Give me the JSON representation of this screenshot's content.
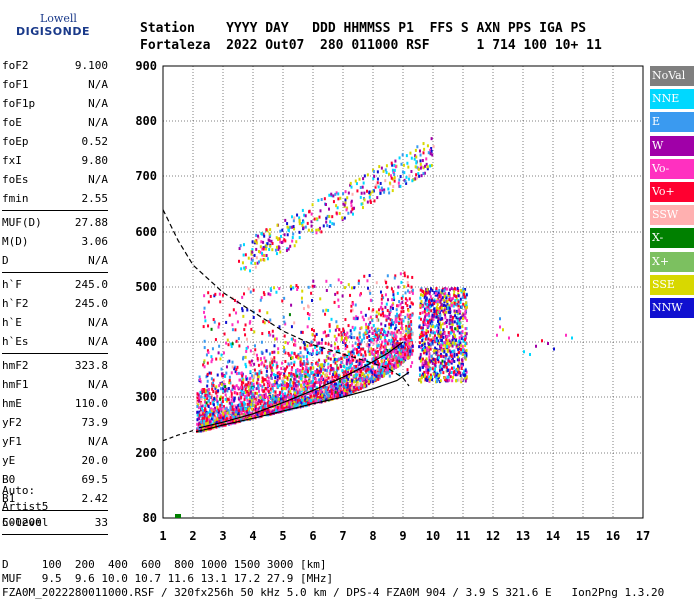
{
  "logo": {
    "line1": "Lowell",
    "line2": "DIGISONDE"
  },
  "header": {
    "row1": "Station    YYYY DAY   DDD HHMMSS P1  FFS S AXN PPS IGA PS",
    "row2": "Fortaleza  2022 Out07  280 011000 RSF      1 714 100 10+ 11"
  },
  "params": [
    {
      "k": "foF2",
      "v": "9.100"
    },
    {
      "k": "foF1",
      "v": "N/A"
    },
    {
      "k": "foF1p",
      "v": "N/A"
    },
    {
      "k": "foE",
      "v": "N/A"
    },
    {
      "k": "foEp",
      "v": "0.52"
    },
    {
      "k": "fxI",
      "v": "9.80"
    },
    {
      "k": "foEs",
      "v": "N/A"
    },
    {
      "k": "fmin",
      "v": "2.55"
    },
    {
      "sep": true
    },
    {
      "k": "MUF(D)",
      "v": "27.88"
    },
    {
      "k": "M(D)",
      "v": "3.06"
    },
    {
      "k": "D",
      "v": "N/A"
    },
    {
      "sep": true
    },
    {
      "k": "h`F",
      "v": "245.0"
    },
    {
      "k": "h`F2",
      "v": "245.0"
    },
    {
      "k": "h`E",
      "v": "N/A"
    },
    {
      "k": "h`Es",
      "v": "N/A"
    },
    {
      "sep": true
    },
    {
      "k": "hmF2",
      "v": "323.8"
    },
    {
      "k": "hmF1",
      "v": "N/A"
    },
    {
      "k": "hmE",
      "v": "110.0"
    },
    {
      "k": "yF2",
      "v": "73.9"
    },
    {
      "k": "yF1",
      "v": "N/A"
    },
    {
      "k": "yE",
      "v": "20.0"
    },
    {
      "k": "B0",
      "v": "69.5"
    },
    {
      "k": "B1",
      "v": "2.42"
    },
    {
      "sep": true
    },
    {
      "k": "C-level",
      "v": "33"
    },
    {
      "sep": true
    }
  ],
  "auto": {
    "l1": "Auto:",
    "l2": "Artist5",
    "l3": "500200"
  },
  "legend": [
    {
      "label": "NoVal",
      "color": "#7f7f7f"
    },
    {
      "label": "NNE",
      "color": "#00d8ff"
    },
    {
      "label": "E",
      "color": "#3a9af0"
    },
    {
      "label": "W",
      "color": "#a000a8"
    },
    {
      "label": "Vo-",
      "color": "#ff30c0"
    },
    {
      "label": "Vo+",
      "color": "#ff0030"
    },
    {
      "label": "SSW",
      "color": "#ffb0b0"
    },
    {
      "label": "X-",
      "color": "#008000"
    },
    {
      "label": "X+",
      "color": "#7cc060"
    },
    {
      "label": "SSE",
      "color": "#d8d800"
    },
    {
      "label": "NNW",
      "color": "#1010d0"
    }
  ],
  "footer": {
    "d_row": "D     100  200  400  600  800 1000 1500 3000 [km]",
    "muf_row": "MUF   9.5  9.6 10.0 10.7 11.6 13.1 17.2 27.9 [MHz]",
    "info_row": "FZA0M_2022280011000.RSF / 320fx256h 50 kHz 5.0 km / DPS-4 FZA0M 904 / 3.9 S 321.6 E   Ion2Png 1.3.20"
  },
  "chart_data": {
    "type": "scatter",
    "xlim": [
      1,
      17
    ],
    "ylim": [
      80,
      900
    ],
    "xticks": [
      1,
      2,
      3,
      4,
      5,
      6,
      7,
      8,
      9,
      10,
      11,
      12,
      13,
      14,
      15,
      16,
      17
    ],
    "yticks": [
      80,
      200,
      300,
      400,
      500,
      600,
      700,
      800,
      900
    ],
    "grid": true,
    "legend_placement": "right",
    "trace_lower": [
      [
        2.1,
        238
      ],
      [
        2.5,
        243
      ],
      [
        3,
        250
      ],
      [
        4,
        262
      ],
      [
        5,
        275
      ],
      [
        6,
        288
      ],
      [
        7,
        300
      ],
      [
        8,
        315
      ],
      [
        8.8,
        330
      ],
      [
        9.2,
        345
      ]
    ],
    "trace_upper": [
      [
        2.2,
        245
      ],
      [
        3,
        255
      ],
      [
        4,
        270
      ],
      [
        5,
        290
      ],
      [
        6,
        312
      ],
      [
        7,
        336
      ],
      [
        7.8,
        358
      ],
      [
        8.5,
        380
      ],
      [
        9.0,
        400
      ]
    ],
    "profile": [
      [
        1.0,
        640
      ],
      [
        1.5,
        585
      ],
      [
        2.0,
        540
      ],
      [
        3,
        490
      ],
      [
        4,
        455
      ],
      [
        5,
        420
      ],
      [
        6,
        395
      ],
      [
        7,
        378
      ],
      [
        7.8,
        365
      ],
      [
        8.5,
        352
      ],
      [
        9.0,
        335
      ],
      [
        9.2,
        320
      ]
    ],
    "bottomline": [
      [
        1.0,
        222
      ],
      [
        1.5,
        232
      ],
      [
        2.0,
        240
      ]
    ]
  }
}
